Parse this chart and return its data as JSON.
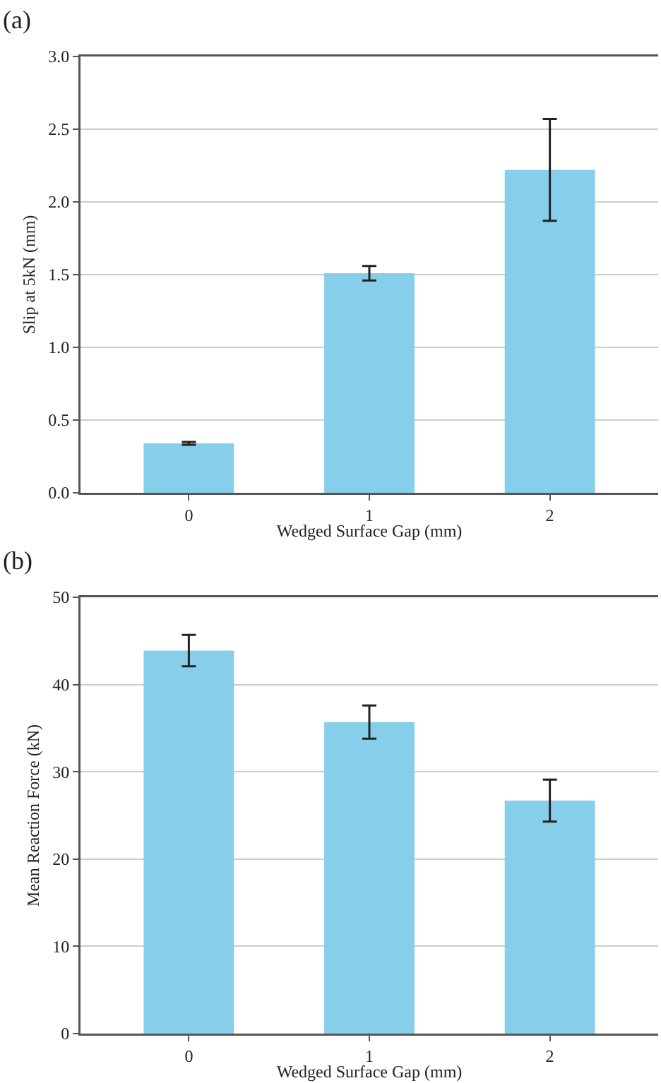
{
  "chart_data": [
    {
      "type": "bar",
      "annotations": [
        "(a)"
      ],
      "xlabel": "Wedged Surface Gap (mm)",
      "ylabel": "Slip at 5kN (mm)",
      "categories": [
        "0",
        "1",
        "2"
      ],
      "values": [
        0.34,
        1.51,
        2.22
      ],
      "errors": [
        0.01,
        0.05,
        0.35
      ],
      "color": "#87ceeb",
      "ylim": [
        0,
        3
      ],
      "yticks": [
        {
          "value": 0,
          "label": "0.0"
        },
        {
          "value": 0.5,
          "label": "0.5"
        },
        {
          "value": 1,
          "label": "1.0"
        },
        {
          "value": 1.5,
          "label": "1.5"
        },
        {
          "value": 2,
          "label": "2.0"
        },
        {
          "value": 2.5,
          "label": "2.5"
        },
        {
          "value": 3,
          "label": "3.0"
        }
      ],
      "grid": "y"
    },
    {
      "type": "bar",
      "annotations": [
        "(b)"
      ],
      "xlabel": "Wedged Surface Gap (mm)",
      "ylabel": "Mean Reaction Force (kN)",
      "categories": [
        "0",
        "1",
        "2"
      ],
      "values": [
        43.9,
        35.7,
        26.7
      ],
      "errors": [
        1.8,
        1.9,
        2.4
      ],
      "color": "#87ceeb",
      "ylim": [
        0,
        50
      ],
      "yticks": [
        0,
        10,
        20,
        30,
        40,
        50
      ],
      "grid": "y"
    }
  ]
}
